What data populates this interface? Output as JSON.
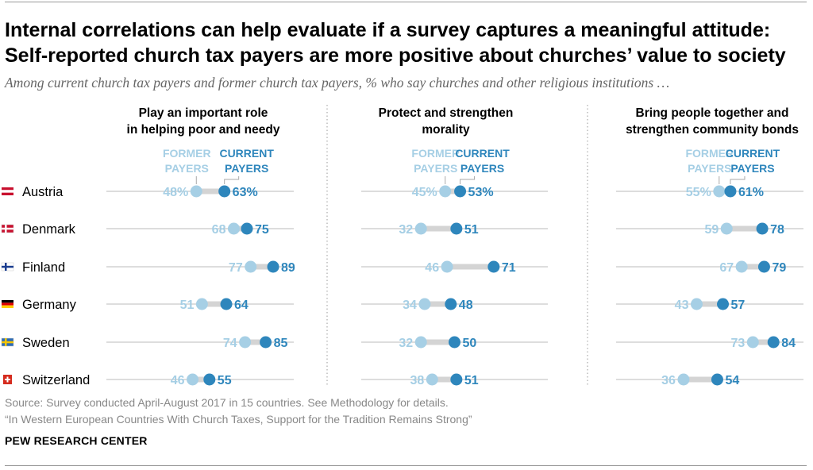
{
  "title": "Internal correlations can help evaluate if a survey captures a meaningful attitude: Self-reported church tax payers are more positive about churches’ value to society",
  "subtitle": "Among current church tax payers and former church tax payers, % who say churches and other religious institutions …",
  "source_line1": "Source: Survey conducted April-August 2017 in 15 countries. See Methodology for details.",
  "source_line2": "“In Western European Countries With Church Taxes, Support for the Tradition Remains Strong”",
  "credit": "PEW RESEARCH CENTER",
  "colors": {
    "former": "#a6cfe5",
    "current": "#2e86bc",
    "connector": "#d4d4d4",
    "gridline": "#bbbbbb",
    "divider": "#9a9a9a"
  },
  "chart_data": {
    "type": "dot-plot",
    "xlim": [
      0,
      100
    ],
    "countries": [
      "Austria",
      "Denmark",
      "Finland",
      "Germany",
      "Sweden",
      "Switzerland"
    ],
    "series_labels": {
      "former": [
        "FORMER",
        "PAYERS"
      ],
      "current": [
        "CURRENT",
        "PAYERS"
      ]
    },
    "panels": [
      {
        "title": [
          "Play an important role",
          "in helping poor and needy"
        ],
        "former": [
          48,
          68,
          77,
          51,
          74,
          46
        ],
        "current": [
          63,
          75,
          89,
          64,
          85,
          55
        ]
      },
      {
        "title": [
          "Protect and strengthen",
          "morality"
        ],
        "former": [
          45,
          32,
          46,
          34,
          32,
          38
        ],
        "current": [
          53,
          51,
          71,
          48,
          50,
          51
        ]
      },
      {
        "title": [
          "Bring people together and",
          "strengthen community bonds"
        ],
        "former": [
          55,
          59,
          67,
          43,
          73,
          36
        ],
        "current": [
          61,
          78,
          79,
          57,
          84,
          54
        ]
      }
    ]
  }
}
